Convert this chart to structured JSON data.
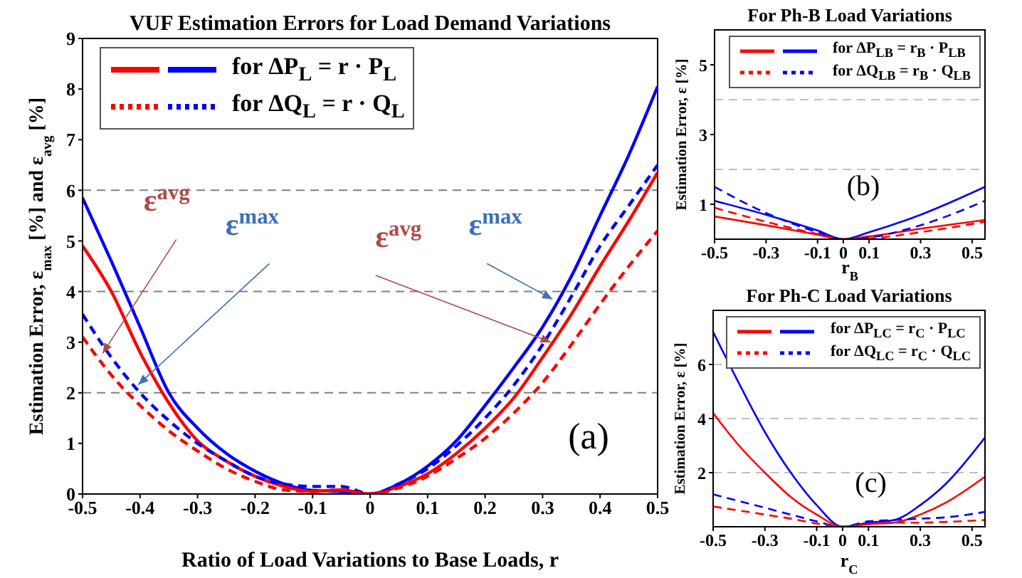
{
  "chart_data": [
    {
      "type": "line",
      "title": "VUF Estimation Errors for Load Demand Variations",
      "xlabel": "Ratio of Load Variations to Base Loads, r",
      "ylabel": "Estimation Error, ε$_{max}$ [%] and ε$_{avg}$ [%]",
      "xlim": [
        -0.5,
        0.5
      ],
      "ylim": [
        0,
        9
      ],
      "xticks": [
        -0.5,
        -0.4,
        -0.3,
        -0.2,
        -0.1,
        0,
        0.1,
        0.2,
        0.3,
        0.4,
        0.5
      ],
      "yticks": [
        0,
        1,
        2,
        3,
        4,
        5,
        6,
        7,
        8,
        9
      ],
      "marker": "none",
      "legend": "top left",
      "ref_lines": [
        {
          "axis": "y",
          "value": 2,
          "color": "#808080",
          "line_style": "dashed"
        },
        {
          "axis": "y",
          "value": 4,
          "color": "#808080",
          "line_style": "dashed"
        },
        {
          "axis": "y",
          "value": 6,
          "color": "#808080",
          "line_style": "dashed"
        }
      ],
      "series": [
        {
          "name": "for ΔP$_{L}$ = r · P$_{L}$",
          "color": "#0000ff",
          "line_style": "solid",
          "x": [
            -0.5,
            -0.45,
            -0.4,
            -0.35,
            -0.3,
            -0.25,
            -0.2,
            -0.15,
            -0.1,
            -0.05,
            0,
            0.05,
            0.1,
            0.15,
            0.2,
            0.25,
            0.3,
            0.35,
            0.4,
            0.45,
            0.5
          ],
          "values": [
            5.85,
            4.6,
            3.3,
            2.0,
            1.3,
            0.8,
            0.45,
            0.2,
            0.07,
            0.05,
            0,
            0.2,
            0.55,
            1.05,
            1.75,
            2.5,
            3.3,
            4.3,
            5.5,
            6.7,
            8.05
          ]
        },
        {
          "color": "#ff0000",
          "line_style": "solid",
          "x": [
            -0.5,
            -0.45,
            -0.4,
            -0.35,
            -0.3,
            -0.25,
            -0.2,
            -0.15,
            -0.1,
            -0.05,
            0,
            0.05,
            0.1,
            0.15,
            0.2,
            0.25,
            0.3,
            0.35,
            0.4,
            0.45,
            0.5
          ],
          "values": [
            4.9,
            4.0,
            2.8,
            1.8,
            1.05,
            0.65,
            0.35,
            0.15,
            0.05,
            0.08,
            0,
            0.15,
            0.4,
            0.8,
            1.3,
            1.9,
            2.7,
            3.55,
            4.5,
            5.4,
            6.35
          ]
        },
        {
          "name": "for ΔQ$_{L}$ = r · Q$_{L}$",
          "color": "#0000ff",
          "line_style": "dashed",
          "x": [
            -0.5,
            -0.45,
            -0.4,
            -0.35,
            -0.3,
            -0.25,
            -0.2,
            -0.15,
            -0.1,
            -0.05,
            0,
            0.05,
            0.1,
            0.15,
            0.2,
            0.25,
            0.3,
            0.35,
            0.4,
            0.45,
            0.5
          ],
          "values": [
            3.55,
            2.7,
            2.0,
            1.45,
            1.0,
            0.65,
            0.35,
            0.2,
            0.15,
            0.15,
            0,
            0.2,
            0.5,
            0.95,
            1.5,
            2.15,
            2.95,
            3.9,
            4.9,
            5.7,
            6.5
          ]
        },
        {
          "color": "#ff0000",
          "line_style": "dashed",
          "x": [
            -0.5,
            -0.45,
            -0.4,
            -0.35,
            -0.3,
            -0.25,
            -0.2,
            -0.15,
            -0.1,
            -0.05,
            0,
            0.05,
            0.1,
            0.15,
            0.2,
            0.25,
            0.3,
            0.35,
            0.4,
            0.45,
            0.5
          ],
          "values": [
            3.1,
            2.35,
            1.75,
            1.25,
            0.85,
            0.5,
            0.25,
            0.08,
            0.05,
            0.08,
            0,
            0.12,
            0.35,
            0.7,
            1.1,
            1.6,
            2.2,
            2.95,
            3.75,
            4.5,
            5.2
          ]
        }
      ],
      "annotations": [
        {
          "text": "ε$^{avg}$",
          "x": -0.465,
          "y": 2.78
        },
        {
          "text": "ε$^{max}$",
          "x": -0.403,
          "y": 2.16
        },
        {
          "text": "ε$^{avg}$",
          "x": 0.314,
          "y": 3.0
        },
        {
          "text": "ε$^{max}$",
          "x": 0.317,
          "y": 3.85
        },
        "(a)"
      ]
    },
    {
      "type": "line",
      "title": "For Ph-B Load Variations",
      "xlabel": "r$_{B}$",
      "ylabel": "Estimation Error, ε [%]",
      "xlim": [
        -0.5,
        0.55
      ],
      "ylim": [
        0,
        6
      ],
      "xticks": [
        -0.5,
        -0.3,
        -0.1,
        0,
        0.1,
        0.3,
        0.5
      ],
      "yticks": [
        1,
        3,
        5
      ],
      "marker": "none",
      "legend": "top right",
      "ref_lines": [
        {
          "axis": "y",
          "value": 2,
          "color": "#c0c0c0",
          "line_style": "dashed"
        },
        {
          "axis": "y",
          "value": 4,
          "color": "#c0c0c0",
          "line_style": "dashed"
        }
      ],
      "series": [
        {
          "name": "for ΔP$_{LB}$ = r$_{B}$ · P$_{LB}$",
          "color": "#0000ff",
          "line_style": "solid",
          "x": [
            -0.5,
            -0.3,
            -0.1,
            0,
            0.1,
            0.3,
            0.55
          ],
          "values": [
            1.1,
            0.7,
            0.25,
            0,
            0.2,
            0.7,
            1.5
          ]
        },
        {
          "color": "#ff0000",
          "line_style": "solid",
          "x": [
            -0.5,
            -0.3,
            -0.1,
            0,
            0.1,
            0.3,
            0.55
          ],
          "values": [
            0.65,
            0.4,
            0.13,
            0,
            0.08,
            0.3,
            0.55
          ]
        },
        {
          "name": "for ΔQ$_{LB}$ = r$_{B}$ · Q$_{LB}$",
          "color": "#0000ff",
          "line_style": "dashed",
          "x": [
            -0.5,
            -0.3,
            -0.1,
            0,
            0.1,
            0.3,
            0.55
          ],
          "values": [
            1.5,
            0.75,
            0.2,
            0,
            0.05,
            0.4,
            1.1
          ]
        },
        {
          "color": "#ff0000",
          "line_style": "dashed",
          "x": [
            -0.5,
            -0.3,
            -0.1,
            0,
            0.1,
            0.3,
            0.55
          ],
          "values": [
            0.9,
            0.5,
            0.15,
            0,
            0.02,
            0.2,
            0.5
          ]
        }
      ],
      "annotations": [
        "(b)"
      ]
    },
    {
      "type": "line",
      "title": "For Ph-C Load Variations",
      "xlabel": "r$_{C}$",
      "ylabel": "Estimation Error, ε [%]",
      "xlim": [
        -0.5,
        0.55
      ],
      "ylim": [
        0,
        8
      ],
      "xticks": [
        -0.5,
        -0.3,
        -0.1,
        0,
        0.1,
        0.3,
        0.5
      ],
      "yticks": [
        2,
        4,
        6
      ],
      "marker": "none",
      "legend": "top right",
      "ref_lines": [
        {
          "axis": "y",
          "value": 2,
          "color": "#c0c0c0",
          "line_style": "dashed"
        },
        {
          "axis": "y",
          "value": 4,
          "color": "#c0c0c0",
          "line_style": "dashed"
        },
        {
          "axis": "y",
          "value": 6,
          "color": "#c0c0c0",
          "line_style": "dashed"
        }
      ],
      "series": [
        {
          "name": "for ΔP$_{LC}$ = r$_{C}$ · P$_{LC}$",
          "color": "#0000ff",
          "line_style": "solid",
          "x": [
            -0.5,
            -0.4,
            -0.3,
            -0.2,
            -0.1,
            0,
            0.1,
            0.2,
            0.3,
            0.4,
            0.55
          ],
          "values": [
            7.2,
            5.3,
            3.5,
            2.0,
            0.8,
            0,
            0.15,
            0.25,
            0.8,
            1.6,
            3.3
          ]
        },
        {
          "color": "#ff0000",
          "line_style": "solid",
          "x": [
            -0.5,
            -0.4,
            -0.3,
            -0.2,
            -0.1,
            0,
            0.1,
            0.2,
            0.3,
            0.4,
            0.55
          ],
          "values": [
            4.2,
            3.0,
            2.0,
            1.1,
            0.45,
            0,
            0.1,
            0.15,
            0.45,
            0.9,
            1.85
          ]
        },
        {
          "name": "for ΔQ$_{LC}$ = r$_{C}$ · Q$_{LC}$",
          "color": "#0000ff",
          "line_style": "dashed",
          "x": [
            -0.5,
            -0.4,
            -0.3,
            -0.2,
            -0.1,
            0,
            0.1,
            0.2,
            0.3,
            0.4,
            0.55
          ],
          "values": [
            1.2,
            0.95,
            0.7,
            0.45,
            0.2,
            0,
            0.2,
            0.25,
            0.3,
            0.35,
            0.55
          ]
        },
        {
          "color": "#ff0000",
          "line_style": "dashed",
          "x": [
            -0.5,
            -0.4,
            -0.3,
            -0.2,
            -0.1,
            0,
            0.1,
            0.2,
            0.3,
            0.4,
            0.55
          ],
          "values": [
            0.75,
            0.6,
            0.45,
            0.3,
            0.12,
            0,
            0.1,
            0.15,
            0.15,
            0.18,
            0.25
          ]
        }
      ],
      "annotations": [
        "(c)"
      ]
    }
  ]
}
